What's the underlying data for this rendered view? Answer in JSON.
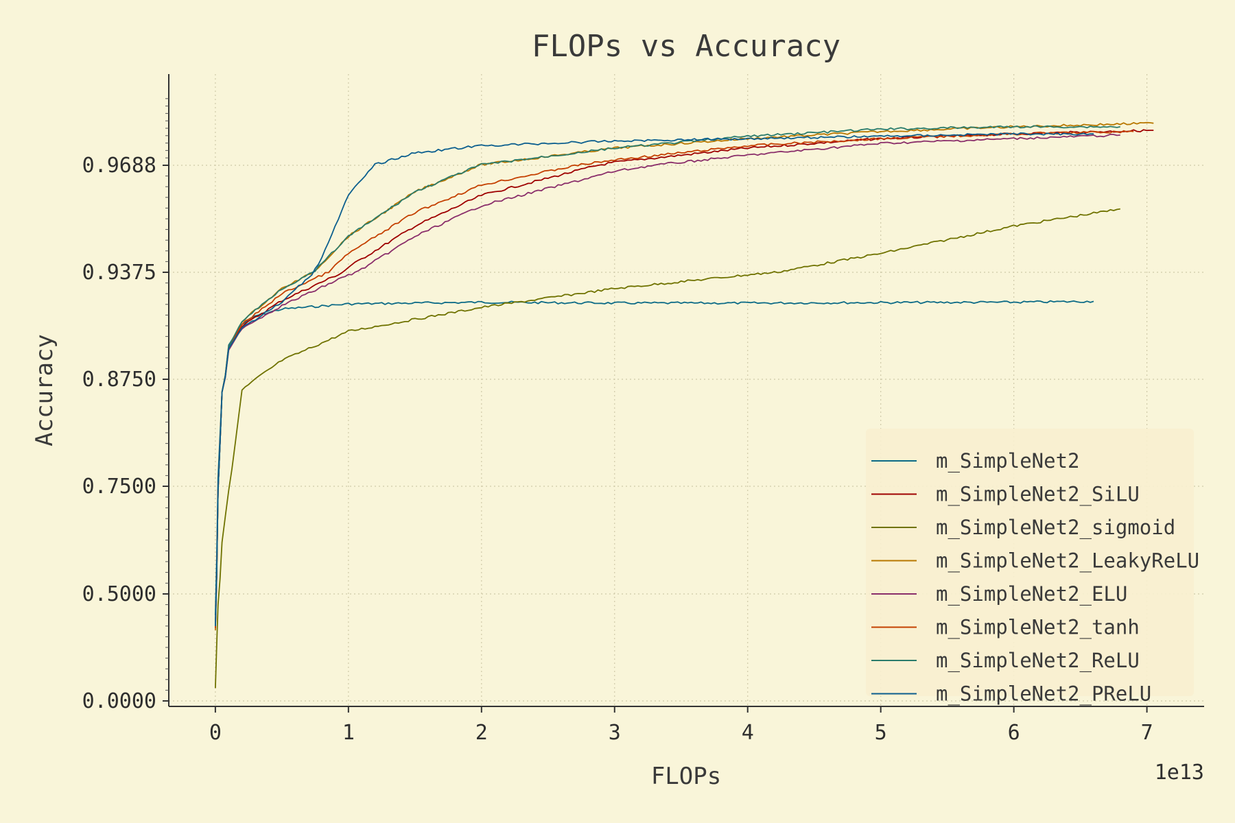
{
  "chart_data": {
    "type": "line",
    "title": "FLOPs vs Accuracy",
    "xlabel": "FLOPs",
    "ylabel": "Accuracy",
    "x_offset_label": "1e13",
    "x_scale_factor": 10000000000000.0,
    "xlim": [
      -0.35,
      7.43
    ],
    "xticks": [
      0,
      1,
      2,
      3,
      4,
      5,
      6,
      7
    ],
    "yscale": "piecewise",
    "yticks": [
      0.0,
      0.5,
      0.75,
      0.875,
      0.9375,
      0.96875
    ],
    "ytick_labels": [
      "0.0000",
      "0.5000",
      "0.7500",
      "0.8750",
      "0.9375",
      "0.9688"
    ],
    "grid": true,
    "legend_position": "lower right",
    "series": [
      {
        "name": "m_SimpleNet2",
        "color": "#0b6a86",
        "x": [
          0,
          0.02,
          0.05,
          0.1,
          0.2,
          0.3,
          0.5,
          1,
          2,
          3,
          4,
          5,
          6,
          6.6
        ],
        "y": [
          0.4,
          0.76,
          0.86,
          0.895,
          0.907,
          0.912,
          0.916,
          0.919,
          0.92,
          0.9195,
          0.9195,
          0.9198,
          0.92,
          0.9205
        ]
      },
      {
        "name": "m_SimpleNet2_SiLU",
        "color": "#9e0000",
        "x": [
          0,
          0.02,
          0.05,
          0.1,
          0.2,
          0.5,
          1,
          1.5,
          2,
          3,
          4,
          5,
          6,
          7.05
        ],
        "y": [
          0.35,
          0.74,
          0.86,
          0.893,
          0.906,
          0.921,
          0.939,
          0.951,
          0.96,
          0.97,
          0.976,
          0.98,
          0.982,
          0.9835
        ]
      },
      {
        "name": "m_SimpleNet2_sigmoid",
        "color": "#6f7200",
        "x": [
          0,
          0.02,
          0.05,
          0.1,
          0.2,
          0.3,
          0.5,
          1,
          2,
          3,
          4,
          5,
          6,
          6.8
        ],
        "y": [
          0.06,
          0.45,
          0.62,
          0.74,
          0.862,
          0.875,
          0.886,
          0.903,
          0.917,
          0.928,
          0.936,
          0.943,
          0.951,
          0.956
        ]
      },
      {
        "name": "m_SimpleNet2_LeakyReLU",
        "color": "#b87700",
        "x": [
          0,
          0.02,
          0.05,
          0.1,
          0.2,
          0.5,
          1,
          1.5,
          2,
          3,
          4,
          5,
          6,
          7.05
        ],
        "y": [
          0.33,
          0.74,
          0.86,
          0.894,
          0.909,
          0.928,
          0.948,
          0.961,
          0.969,
          0.976,
          0.98,
          0.983,
          0.985,
          0.9865
        ]
      },
      {
        "name": "m_SimpleNet2_ELU",
        "color": "#8a2e6a",
        "x": [
          0,
          0.02,
          0.05,
          0.1,
          0.2,
          0.5,
          1,
          1.5,
          2,
          3,
          4,
          5,
          6,
          6.8
        ],
        "y": [
          0.34,
          0.74,
          0.86,
          0.892,
          0.905,
          0.918,
          0.936,
          0.948,
          0.957,
          0.967,
          0.973,
          0.978,
          0.98,
          0.9815
        ]
      },
      {
        "name": "m_SimpleNet2_tanh",
        "color": "#c43f00",
        "x": [
          0,
          0.02,
          0.05,
          0.1,
          0.2,
          0.5,
          1,
          1.5,
          2,
          3,
          4,
          5,
          6,
          6.9
        ],
        "y": [
          0.34,
          0.74,
          0.86,
          0.894,
          0.907,
          0.925,
          0.943,
          0.955,
          0.963,
          0.971,
          0.977,
          0.98,
          0.982,
          0.983
        ]
      },
      {
        "name": "m_SimpleNet2_ReLU",
        "color": "#2a7b6b",
        "x": [
          0,
          0.02,
          0.05,
          0.1,
          0.2,
          0.5,
          1,
          1.5,
          2,
          3,
          4,
          5,
          6,
          6.8
        ],
        "y": [
          0.35,
          0.74,
          0.86,
          0.894,
          0.909,
          0.928,
          0.948,
          0.961,
          0.969,
          0.976,
          0.981,
          0.984,
          0.985,
          0.985
        ]
      },
      {
        "name": "m_SimpleNet2_PReLU",
        "color": "#0b5e8e",
        "x": [
          0,
          0.02,
          0.05,
          0.1,
          0.2,
          0.5,
          0.8,
          1,
          1.2,
          1.5,
          2,
          3,
          4,
          5,
          6,
          6.6
        ],
        "y": [
          0.35,
          0.74,
          0.86,
          0.893,
          0.905,
          0.92,
          0.942,
          0.96,
          0.969,
          0.974,
          0.977,
          0.979,
          0.98,
          0.981,
          0.982,
          0.982
        ]
      }
    ]
  }
}
